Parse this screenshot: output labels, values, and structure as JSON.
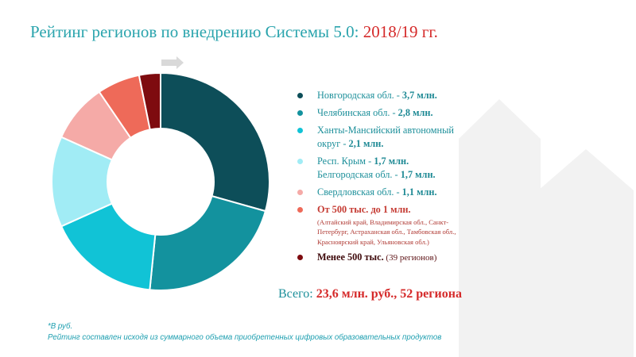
{
  "title": {
    "main": "Рейтинг регионов по внедрению Системы 5.0:",
    "highlight": "2018/19 гг."
  },
  "chart_data": {
    "type": "pie",
    "donut": true,
    "unit": "млн. руб.",
    "series": [
      {
        "label": "Новгородская обл.",
        "value": 3.7,
        "color": "#0d4e59"
      },
      {
        "label": "Челябинская обл.",
        "value": 2.8,
        "color": "#13929e"
      },
      {
        "label": "Ханты-Мансийский автономный округ",
        "value": 2.1,
        "color": "#11c3d6"
      },
      {
        "label": "Респ. Крым",
        "value": 1.7,
        "color": "#a1ecf5"
      },
      {
        "label": "Свердловская обл.",
        "value": 1.1,
        "color": "#f5aaa7"
      },
      {
        "label": "От 500 тыс. до 1 млн.",
        "value": 0.8,
        "color": "#ee6a59"
      },
      {
        "label": "Менее 500 тыс.",
        "value": 0.4,
        "color": "#7e0b0f"
      }
    ]
  },
  "legend": [
    {
      "name": "Новгородская обл. - ",
      "value": "3,7 млн.",
      "color": "#0d4e59"
    },
    {
      "name": "Челябинская обл. - ",
      "value": "2,8 млн.",
      "color": "#13929e"
    },
    {
      "name": "Ханты-Мансийский автономный округ - ",
      "value": "2,1 млн.",
      "color": "#11c3d6"
    },
    {
      "name": "Респ. Крым - ",
      "value": "1,7 млн.",
      "name2": "Белгородская обл. - ",
      "value2": "1,7 млн.",
      "color": "#a1ecf5"
    },
    {
      "name": "Свердловская обл. - ",
      "value": "1,1 млн.",
      "color": "#f5aaa7"
    },
    {
      "value": "От 500 тыс. до 1 млн.",
      "note": "(Алтайский край, Владимирская обл., Санкт-Петербург, Астраханская обл., Тамбовская обл., Красноярский край, Ульяновская обл.)",
      "color": "#ee6a59"
    },
    {
      "value": "Менее 500 тыс.",
      "count": " (39 регионов)",
      "color": "#7e0b0f"
    }
  ],
  "total": {
    "label": "Всего: ",
    "value": "23,6 млн. руб., 52 региона"
  },
  "footnotes": {
    "unit": "*В руб.",
    "method": "Рейтинг составлен исходя из суммарного объема приобретенных цифровых образовательных продуктов"
  },
  "colors": {
    "arrow_bg": "#f2f2f2",
    "arrow_small": "#d9d9d9",
    "accent": "#d52a2a",
    "teal": "#1c8f9a"
  }
}
